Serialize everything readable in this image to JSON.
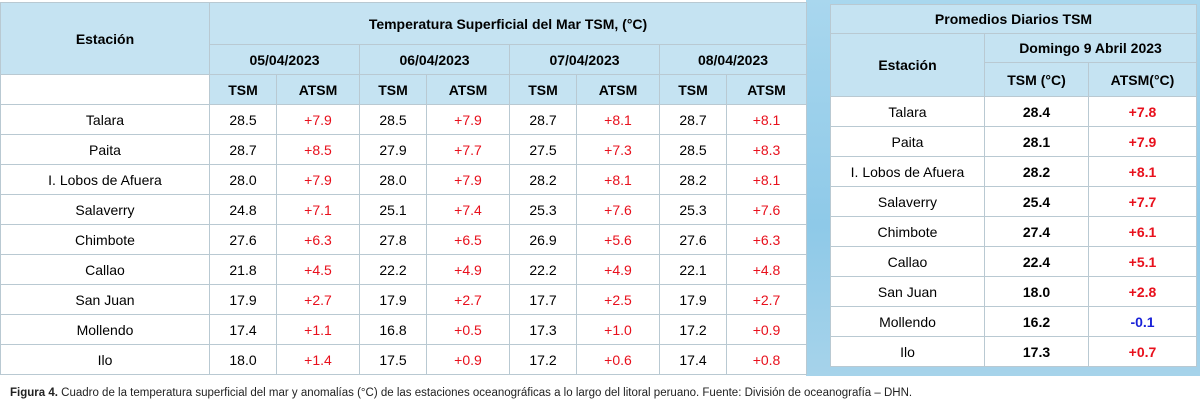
{
  "left_table": {
    "station_header": "Estación",
    "title": "Temperatura Superficial del Mar TSM, (°C)",
    "dates": [
      "05/04/2023",
      "06/04/2023",
      "07/04/2023",
      "08/04/2023"
    ],
    "sub_tsm": "TSM",
    "sub_atsm": "ATSM",
    "rows": [
      {
        "station": "Talara",
        "vals": [
          "28.5",
          "+7.9",
          "28.5",
          "+7.9",
          "28.7",
          "+8.1",
          "28.7",
          "+8.1"
        ]
      },
      {
        "station": "Paita",
        "vals": [
          "28.7",
          "+8.5",
          "27.9",
          "+7.7",
          "27.5",
          "+7.3",
          "28.5",
          "+8.3"
        ]
      },
      {
        "station": "I. Lobos de Afuera",
        "vals": [
          "28.0",
          "+7.9",
          "28.0",
          "+7.9",
          "28.2",
          "+8.1",
          "28.2",
          "+8.1"
        ]
      },
      {
        "station": "Salaverry",
        "vals": [
          "24.8",
          "+7.1",
          "25.1",
          "+7.4",
          "25.3",
          "+7.6",
          "25.3",
          "+7.6"
        ]
      },
      {
        "station": "Chimbote",
        "vals": [
          "27.6",
          "+6.3",
          "27.8",
          "+6.5",
          "26.9",
          "+5.6",
          "27.6",
          "+6.3"
        ]
      },
      {
        "station": "Callao",
        "vals": [
          "21.8",
          "+4.5",
          "22.2",
          "+4.9",
          "22.2",
          "+4.9",
          "22.1",
          "+4.8"
        ]
      },
      {
        "station": "San Juan",
        "vals": [
          "17.9",
          "+2.7",
          "17.9",
          "+2.7",
          "17.7",
          "+2.5",
          "17.9",
          "+2.7"
        ]
      },
      {
        "station": "Mollendo",
        "vals": [
          "17.4",
          "+1.1",
          "16.8",
          "+0.5",
          "17.3",
          "+1.0",
          "17.2",
          "+0.9"
        ]
      },
      {
        "station": "Ilo",
        "vals": [
          "18.0",
          "+1.4",
          "17.5",
          "+0.9",
          "17.2",
          "+0.6",
          "17.4",
          "+0.8"
        ]
      }
    ]
  },
  "right_table": {
    "title": "Promedios Diarios TSM",
    "station_header": "Estación",
    "date": "Domingo 9 Abril 2023",
    "sub_tsm": "TSM (°C)",
    "sub_atsm": "ATSM(°C)",
    "rows": [
      {
        "station": "Talara",
        "tsm": "28.4",
        "atsm": "+7.8"
      },
      {
        "station": "Paita",
        "tsm": "28.1",
        "atsm": "+7.9"
      },
      {
        "station": "I. Lobos de Afuera",
        "tsm": "28.2",
        "atsm": "+8.1"
      },
      {
        "station": "Salaverry",
        "tsm": "25.4",
        "atsm": "+7.7"
      },
      {
        "station": "Chimbote",
        "tsm": "27.4",
        "atsm": "+6.1"
      },
      {
        "station": "Callao",
        "tsm": "22.4",
        "atsm": "+5.1"
      },
      {
        "station": "San Juan",
        "tsm": "18.0",
        "atsm": "+2.8"
      },
      {
        "station": "Mollendo",
        "tsm": "16.2",
        "atsm": "-0.1"
      },
      {
        "station": "Ilo",
        "tsm": "17.3",
        "atsm": "+0.7"
      }
    ]
  },
  "caption": {
    "label": "Figura 4.",
    "text": " Cuadro de la temperatura superficial del mar y anomalías (°C) de las estaciones oceanográficas a lo largo del litoral peruano. Fuente: División de oceanografía – DHN."
  },
  "colors": {
    "positive": "#e8101c",
    "negative": "#1a22d8",
    "header_bg": "#c5e3f2"
  }
}
